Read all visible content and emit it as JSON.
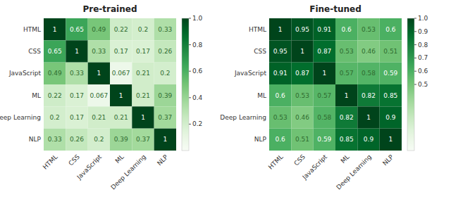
{
  "chart_data": [
    {
      "type": "heatmap",
      "title": "Pre-trained",
      "categories": [
        "HTML",
        "CSS",
        "JavaScript",
        "ML",
        "Deep Learning",
        "NLP"
      ],
      "values": [
        [
          1,
          0.65,
          0.49,
          0.22,
          0.2,
          0.33
        ],
        [
          0.65,
          1,
          0.33,
          0.17,
          0.17,
          0.26
        ],
        [
          0.49,
          0.33,
          1,
          0.067,
          0.21,
          0.2
        ],
        [
          0.22,
          0.17,
          0.067,
          1,
          0.21,
          0.39
        ],
        [
          0.2,
          0.17,
          0.21,
          0.21,
          1,
          0.37
        ],
        [
          0.33,
          0.26,
          0.2,
          0.39,
          0.37,
          1
        ]
      ],
      "color_range": [
        0.0,
        1.0
      ],
      "color_ticks": [
        0.2,
        0.4,
        0.6,
        0.8,
        {
          "value": 1.0,
          "label": "1.0"
        }
      ],
      "data_labels": true
    },
    {
      "type": "heatmap",
      "title": "Fine-tuned",
      "categories": [
        "HTML",
        "CSS",
        "JavaScript",
        "ML",
        "Deep Learning",
        "NLP"
      ],
      "values": [
        [
          1,
          0.95,
          0.91,
          0.6,
          0.53,
          0.6
        ],
        [
          0.95,
          1,
          0.87,
          0.53,
          0.46,
          0.51
        ],
        [
          0.91,
          0.87,
          1,
          0.57,
          0.58,
          0.59
        ],
        [
          0.6,
          0.53,
          0.57,
          1,
          0.82,
          0.85
        ],
        [
          0.53,
          0.46,
          0.58,
          0.82,
          1,
          0.9
        ],
        [
          0.6,
          0.51,
          0.59,
          0.85,
          0.9,
          1
        ]
      ],
      "color_range": [
        0.0,
        1.0
      ],
      "color_ticks": [
        0.5,
        0.6,
        0.7,
        0.8,
        0.9,
        {
          "value": 1.0,
          "label": "1.0"
        }
      ],
      "data_labels": true
    }
  ]
}
